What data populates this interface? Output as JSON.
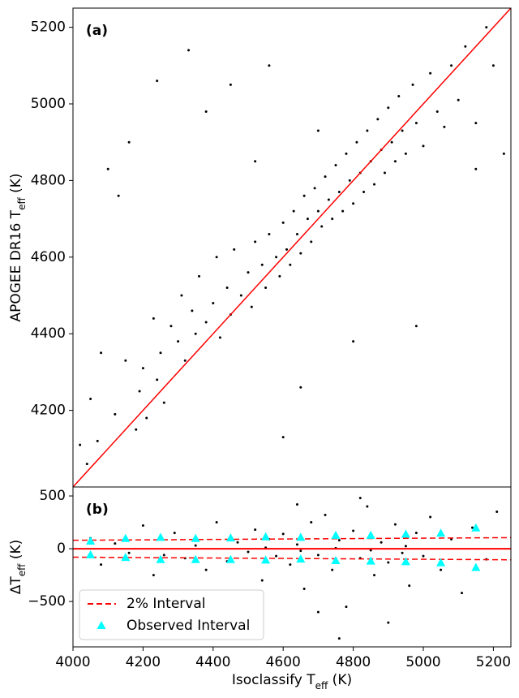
{
  "chart_data": [
    {
      "type": "scatter",
      "annotation": "(a)",
      "ylabel": [
        "APOGEE DR16 ",
        "T",
        "eff",
        " (K)"
      ],
      "xlim": [
        4000,
        5250
      ],
      "ylim": [
        4000,
        5250
      ],
      "yticks": [
        4200,
        4400,
        4600,
        4800,
        5000,
        5200
      ],
      "color": "#000000",
      "x": [
        4020,
        4040,
        4050,
        4070,
        4080,
        4100,
        4120,
        4130,
        4150,
        4160,
        4180,
        4190,
        4200,
        4210,
        4230,
        4240,
        4250,
        4260,
        4280,
        4300,
        4310,
        4320,
        4340,
        4350,
        4360,
        4380,
        4400,
        4410,
        4420,
        4440,
        4450,
        4460,
        4480,
        4500,
        4510,
        4520,
        4540,
        4550,
        4560,
        4580,
        4590,
        4600,
        4610,
        4620,
        4630,
        4640,
        4650,
        4660,
        4670,
        4680,
        4690,
        4700,
        4710,
        4720,
        4730,
        4740,
        4750,
        4760,
        4770,
        4780,
        4790,
        4800,
        4810,
        4820,
        4830,
        4840,
        4850,
        4860,
        4870,
        4880,
        4890,
        4900,
        4910,
        4920,
        4930,
        4940,
        4950,
        4970,
        4980,
        5000,
        5020,
        5040,
        5060,
        5080,
        5100,
        5120,
        5150,
        5180,
        5200,
        5230,
        4330,
        4240,
        4450,
        4560,
        4380,
        4650,
        4800,
        4980,
        4600,
        5150,
        4700,
        4520
      ],
      "y": [
        4110,
        4060,
        4230,
        4120,
        4350,
        4830,
        4190,
        4760,
        4330,
        4900,
        4150,
        4250,
        4310,
        4180,
        4440,
        4280,
        4350,
        4220,
        4420,
        4380,
        4500,
        4330,
        4460,
        4400,
        4550,
        4430,
        4480,
        4600,
        4390,
        4520,
        4450,
        4620,
        4500,
        4560,
        4470,
        4640,
        4580,
        4520,
        4660,
        4600,
        4550,
        4690,
        4620,
        4580,
        4720,
        4660,
        4610,
        4760,
        4700,
        4640,
        4780,
        4720,
        4680,
        4810,
        4750,
        4700,
        4840,
        4770,
        4720,
        4870,
        4800,
        4740,
        4900,
        4820,
        4770,
        4930,
        4850,
        4790,
        4960,
        4880,
        4820,
        4990,
        4900,
        4850,
        5020,
        4930,
        4870,
        5050,
        4950,
        4890,
        5080,
        4980,
        4940,
        5100,
        5010,
        5150,
        4950,
        5200,
        5100,
        4870,
        5140,
        5060,
        5050,
        5100,
        4980,
        4260,
        4380,
        4420,
        4130,
        4830,
        4930,
        4850
      ],
      "reference_line": {
        "color": "#ff0000",
        "x": [
          4000,
          5250
        ],
        "y": [
          4000,
          5250
        ]
      }
    },
    {
      "type": "scatter",
      "annotation": "(b)",
      "ylabel": [
        "Δ",
        "T",
        "eff",
        " (K)"
      ],
      "xlabel": [
        "Isoclassify ",
        "T",
        "eff",
        " (K)"
      ],
      "xlim": [
        4000,
        5250
      ],
      "ylim": [
        -930,
        585
      ],
      "xticks": [
        4000,
        4200,
        4400,
        4600,
        4800,
        5000,
        5200
      ],
      "yticks": [
        {
          "value": -500,
          "label": "−500"
        },
        0,
        500
      ],
      "color": "#000000",
      "x": [
        4050,
        4080,
        4120,
        4160,
        4200,
        4230,
        4260,
        4290,
        4320,
        4350,
        4380,
        4410,
        4440,
        4470,
        4500,
        4520,
        4540,
        4560,
        4580,
        4600,
        4620,
        4640,
        4660,
        4680,
        4700,
        4720,
        4740,
        4760,
        4780,
        4800,
        4820,
        4840,
        4860,
        4880,
        4900,
        4920,
        4940,
        4960,
        4980,
        5000,
        5020,
        5050,
        5080,
        5110,
        5140,
        5180,
        5210,
        4760,
        4640,
        4900,
        4700,
        4820,
        4550,
        4650,
        4750,
        4850,
        4950
      ],
      "y": [
        100,
        -150,
        50,
        -40,
        220,
        -250,
        -60,
        150,
        -90,
        30,
        -200,
        250,
        -120,
        60,
        -30,
        180,
        -300,
        90,
        -70,
        140,
        -150,
        40,
        -380,
        250,
        -60,
        320,
        -200,
        80,
        -550,
        170,
        -90,
        400,
        -250,
        60,
        -130,
        230,
        -40,
        -350,
        150,
        -70,
        300,
        -200,
        90,
        -420,
        200,
        -100,
        350,
        -850,
        420,
        -700,
        -600,
        480,
        10,
        -20,
        5,
        -15,
        25
      ],
      "hline": {
        "value": 0,
        "color": "#ff0000"
      },
      "series": [
        {
          "name": "2% Interval",
          "color": "#ff0000",
          "x": [
            4000,
            5250
          ],
          "upper": [
            80,
            105
          ],
          "lower": [
            -80,
            -105
          ]
        },
        {
          "name": "Observed Interval",
          "color": "#00ffff",
          "x": [
            4050,
            4150,
            4250,
            4350,
            4450,
            4550,
            4650,
            4750,
            4850,
            4950,
            5050,
            5150
          ],
          "upper": [
            70,
            95,
            105,
            95,
            100,
            110,
            105,
            125,
            125,
            135,
            145,
            195
          ],
          "lower": [
            -60,
            -85,
            -105,
            -105,
            -105,
            -110,
            -100,
            -115,
            -120,
            -125,
            -135,
            -180
          ]
        }
      ]
    }
  ]
}
